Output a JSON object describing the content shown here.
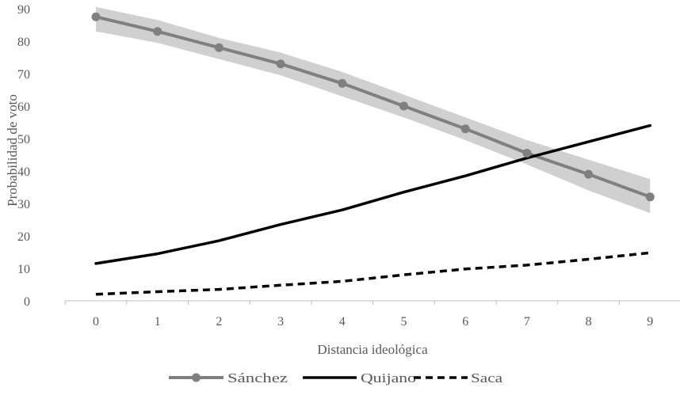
{
  "chart_data": {
    "type": "line",
    "title": "",
    "xlabel": "Distancia ideológica",
    "ylabel": "Probabilidad de voto",
    "x": [
      0,
      1,
      2,
      3,
      4,
      5,
      6,
      7,
      8,
      9
    ],
    "ylim": [
      0,
      90
    ],
    "yticks": [
      0,
      10,
      20,
      30,
      40,
      50,
      60,
      70,
      80,
      90
    ],
    "grid": false,
    "legend_position": "bottom",
    "series": [
      {
        "name": "Sánchez",
        "values": [
          87.5,
          83,
          78,
          73,
          67,
          60,
          53,
          45.5,
          39,
          32
        ],
        "band_upper": [
          90.5,
          86.5,
          81,
          76.5,
          70.5,
          63.5,
          56.5,
          49.5,
          43.5,
          37.5
        ],
        "band_lower": [
          83,
          79.5,
          74.5,
          69.5,
          63,
          56.5,
          49.5,
          42,
          34,
          27
        ],
        "color": "#808080",
        "band_color": "#d0d0d0",
        "style": "solid",
        "markers": true
      },
      {
        "name": "Quijano",
        "values": [
          11.5,
          14.5,
          18.5,
          23.5,
          28,
          33.5,
          38.5,
          44,
          49,
          54
        ],
        "color": "#000000",
        "style": "solid",
        "markers": false
      },
      {
        "name": "Saca",
        "values": [
          2,
          2.8,
          3.5,
          4.8,
          6,
          8,
          9.8,
          11,
          12.8,
          14.8
        ],
        "color": "#000000",
        "style": "dashed",
        "markers": false
      }
    ]
  }
}
